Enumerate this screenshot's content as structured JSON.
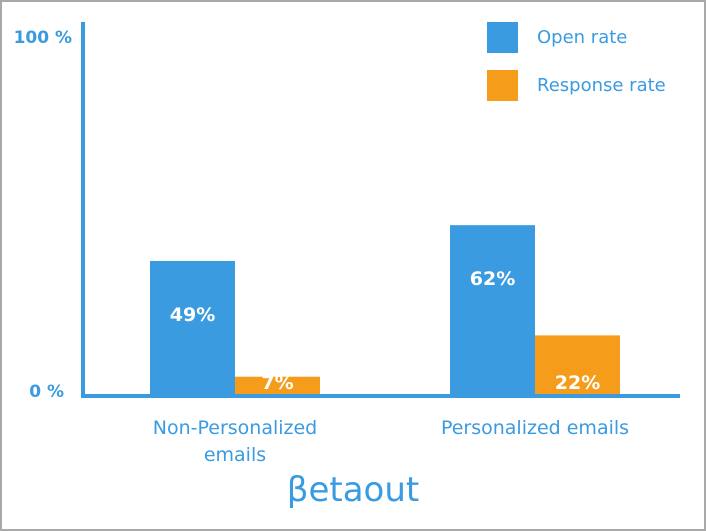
{
  "chart_data": {
    "type": "bar",
    "categories": [
      "Non-Personalized emails",
      "Personalized emails"
    ],
    "category_lines": [
      [
        "Non-Personalized",
        "emails"
      ],
      [
        "Personalized emails"
      ]
    ],
    "series": [
      {
        "name": "Open rate",
        "color": "#3a9be0",
        "values": [
          49,
          62
        ],
        "labels": [
          "49%",
          "62%"
        ]
      },
      {
        "name": "Response rate",
        "color": "#f59c1a",
        "values": [
          7,
          22
        ],
        "labels": [
          "7%",
          "22%"
        ]
      }
    ],
    "y_ticks": [
      "100 %",
      "0 %"
    ],
    "ylim": [
      0,
      100
    ],
    "grid": false,
    "legend_position": "top-right",
    "axis_color": "#3a9be0",
    "text_color": "#3a9be0",
    "value_label_color": "#ffffff"
  },
  "brand": {
    "name": "βetaout"
  }
}
